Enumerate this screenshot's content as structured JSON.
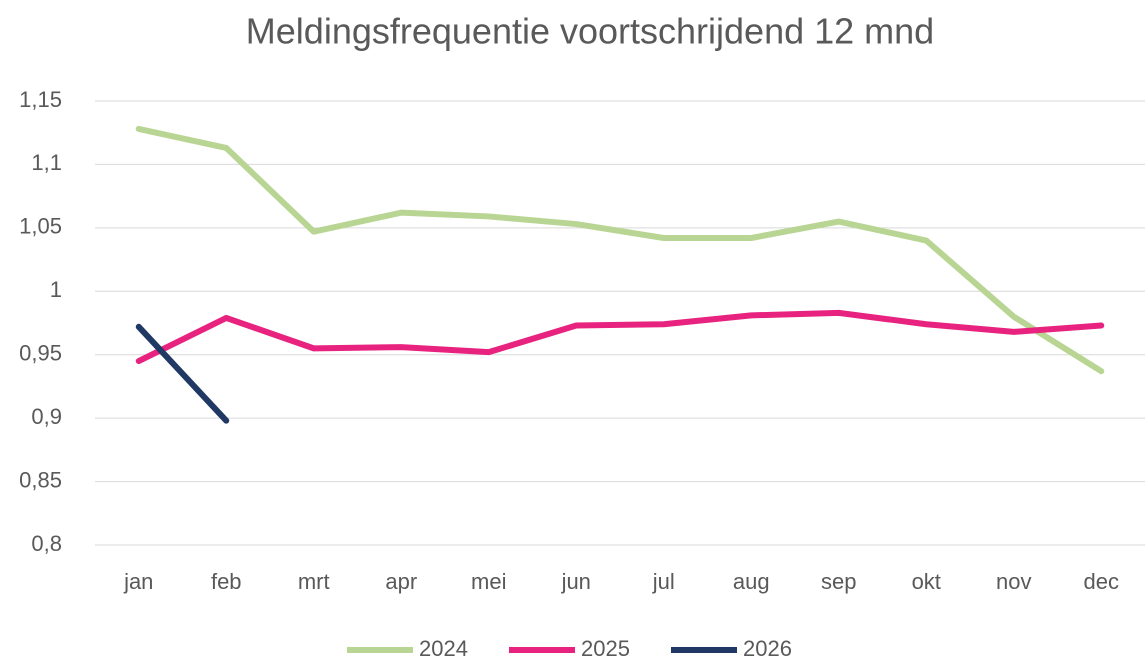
{
  "chart_data": {
    "type": "line",
    "title": "Meldingsfrequentie voortschrijdend 12 mnd",
    "categories": [
      "jan",
      "feb",
      "mrt",
      "apr",
      "mei",
      "jun",
      "jul",
      "aug",
      "sep",
      "okt",
      "nov",
      "dec"
    ],
    "series": [
      {
        "name": "2024",
        "color": "#b9d593",
        "values": [
          1.128,
          1.113,
          1.047,
          1.062,
          1.059,
          1.053,
          1.042,
          1.042,
          1.055,
          1.04,
          0.98,
          0.937
        ]
      },
      {
        "name": "2025",
        "color": "#e8237f",
        "values": [
          0.945,
          0.979,
          0.955,
          0.956,
          0.952,
          0.973,
          0.974,
          0.981,
          0.983,
          0.974,
          0.968,
          0.973
        ]
      },
      {
        "name": "2026",
        "color": "#1f3864",
        "values": [
          0.972,
          0.898,
          null,
          null,
          null,
          null,
          null,
          null,
          null,
          null,
          null,
          null
        ]
      }
    ],
    "ylim": [
      0.8,
      1.15
    ],
    "yticks": [
      {
        "value": 0.8,
        "label": "0,8"
      },
      {
        "value": 0.85,
        "label": "0,85"
      },
      {
        "value": 0.9,
        "label": "0,9"
      },
      {
        "value": 0.95,
        "label": "0,95"
      },
      1,
      {
        "value": 1.05,
        "label": "1,05"
      },
      {
        "value": 1.1,
        "label": "1,1"
      },
      {
        "value": 1.15,
        "label": "1,15"
      }
    ],
    "grid": true,
    "legend": "bottom"
  }
}
